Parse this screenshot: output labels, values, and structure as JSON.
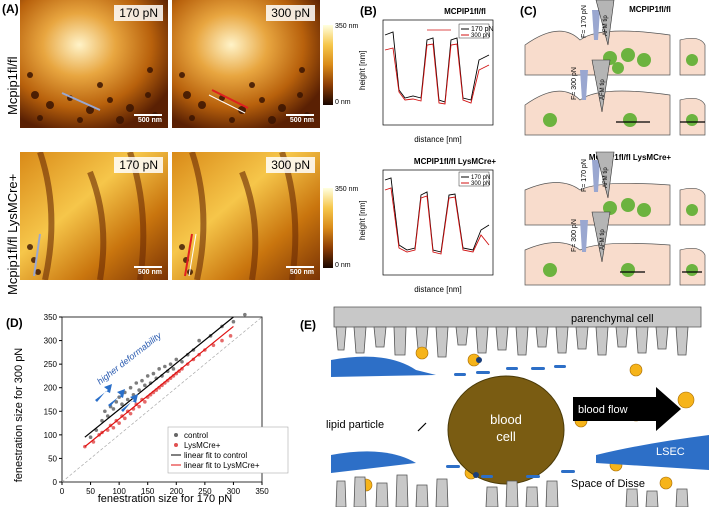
{
  "panel_a": {
    "label": "(A)",
    "row1_label": "Mcpip1fl/fl",
    "row2_label": "Mcpip1fl/fl LysMCre+",
    "force_low": "170 pN",
    "force_high": "300 pN",
    "scale": "500 nm",
    "cbar_top": "350 nm",
    "cbar_bottom": "0 nm"
  },
  "panel_b": {
    "label": "(B)",
    "top_title": "MCPIP1fl/fl",
    "bottom_title": "MCPIP1fl/fl LysMCre+",
    "ylabel": "height [nm]",
    "xlabel": "distance [nm]",
    "legend": [
      "170 pN",
      "300 pN"
    ]
  },
  "panel_c": {
    "label": "(C)",
    "top_title": "MCPIP1fl/fl",
    "bottom_title": "MCPIP1fl/fl LysMCre+",
    "f170": "F= 170 pN",
    "f300": "F= 300 pN",
    "tip": "AFM tip"
  },
  "panel_d": {
    "label": "(D)",
    "annotation": "higher deformability",
    "legend": [
      "control",
      "LysMCre+",
      "linear fit to control",
      "linear fit to LysMCre+"
    ],
    "colors": {
      "control": "#666666",
      "lysm": "#e05050",
      "fit_control": "#000000",
      "fit_lysm": "#e01010"
    },
    "chart_data": {
      "type": "scatter",
      "xlabel": "fenestration size for 170 pN",
      "ylabel": "fenestration size for 300 pN",
      "xlim": [
        0,
        350
      ],
      "ylim": [
        0,
        350
      ],
      "xticks": [
        "0",
        "50",
        "100",
        "150",
        "200",
        "250",
        "300",
        "350"
      ],
      "yticks": [
        "0",
        "50",
        "100",
        "150",
        "200",
        "250",
        "300",
        "350"
      ],
      "series": [
        {
          "name": "control",
          "points": [
            [
              50,
              95
            ],
            [
              60,
              110
            ],
            [
              70,
              130
            ],
            [
              75,
              150
            ],
            [
              80,
              140
            ],
            [
              85,
              160
            ],
            [
              90,
              155
            ],
            [
              95,
              170
            ],
            [
              100,
              180
            ],
            [
              105,
              165
            ],
            [
              110,
              190
            ],
            [
              115,
              175
            ],
            [
              120,
              200
            ],
            [
              125,
              185
            ],
            [
              130,
              210
            ],
            [
              135,
              195
            ],
            [
              140,
              215
            ],
            [
              145,
              205
            ],
            [
              150,
              225
            ],
            [
              155,
              210
            ],
            [
              160,
              230
            ],
            [
              165,
              220
            ],
            [
              170,
              240
            ],
            [
              175,
              225
            ],
            [
              180,
              245
            ],
            [
              185,
              235
            ],
            [
              190,
              250
            ],
            [
              195,
              240
            ],
            [
              200,
              260
            ],
            [
              210,
              255
            ],
            [
              220,
              270
            ],
            [
              230,
              280
            ],
            [
              240,
              300
            ],
            [
              260,
              310
            ],
            [
              280,
              330
            ],
            [
              300,
              340
            ],
            [
              320,
              355
            ]
          ]
        },
        {
          "name": "LysMCre+",
          "points": [
            [
              40,
              75
            ],
            [
              55,
              85
            ],
            [
              65,
              100
            ],
            [
              70,
              105
            ],
            [
              80,
              110
            ],
            [
              85,
              120
            ],
            [
              90,
              115
            ],
            [
              95,
              130
            ],
            [
              100,
              125
            ],
            [
              105,
              140
            ],
            [
              110,
              135
            ],
            [
              115,
              150
            ],
            [
              120,
              145
            ],
            [
              125,
              155
            ],
            [
              130,
              165
            ],
            [
              135,
              160
            ],
            [
              140,
              175
            ],
            [
              145,
              170
            ],
            [
              150,
              180
            ],
            [
              155,
              185
            ],
            [
              160,
              190
            ],
            [
              165,
              195
            ],
            [
              170,
              200
            ],
            [
              175,
              205
            ],
            [
              180,
              210
            ],
            [
              185,
              215
            ],
            [
              190,
              220
            ],
            [
              195,
              225
            ],
            [
              200,
              230
            ],
            [
              205,
              235
            ],
            [
              210,
              240
            ],
            [
              220,
              250
            ],
            [
              230,
              260
            ],
            [
              240,
              270
            ],
            [
              250,
              280
            ],
            [
              265,
              290
            ],
            [
              280,
              300
            ],
            [
              295,
              310
            ]
          ]
        }
      ],
      "fits": [
        {
          "name": "linear fit to control",
          "x": [
            40,
            300
          ],
          "y": [
            95,
            350
          ]
        },
        {
          "name": "linear fit to LysMCre+",
          "x": [
            40,
            300
          ],
          "y": [
            75,
            330
          ]
        }
      ]
    }
  },
  "panel_e": {
    "label": "(E)",
    "parenchymal": "parenchymal cell",
    "lipid": "lipid particle",
    "blood_cell": "blood cell",
    "flow": "blood flow",
    "lsec": "LSEC",
    "disse": "Space of Disse"
  }
}
